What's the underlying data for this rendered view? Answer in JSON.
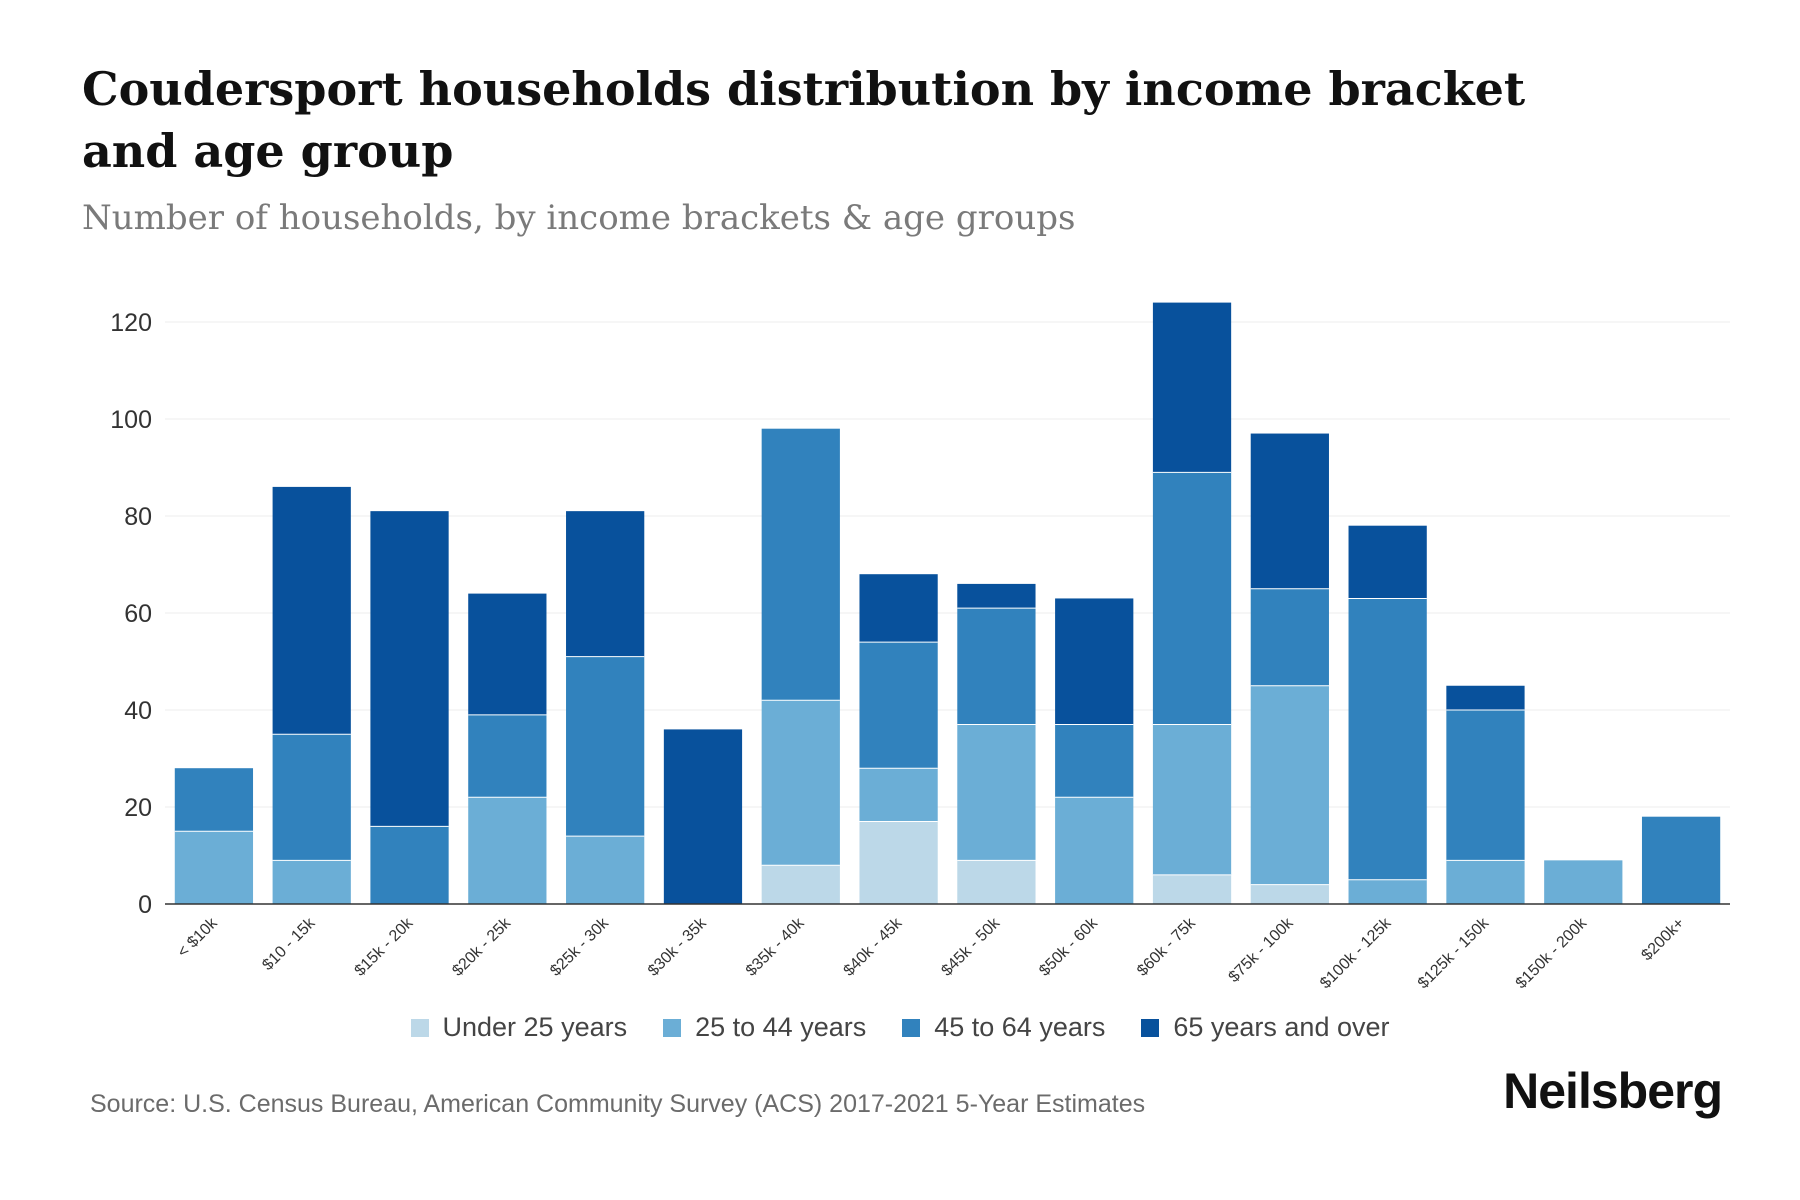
{
  "title": "Coudersport households distribution by income bracket and age group",
  "subtitle": "Number of households, by income brackets & age groups",
  "source": "Source: U.S. Census Bureau, American Community Survey (ACS) 2017-2021 5-Year Estimates",
  "brand": "Neilsberg",
  "chart_data": {
    "type": "bar",
    "stacked": true,
    "title": "Coudersport households distribution by income bracket and age group",
    "subtitle": "Number of households, by income brackets & age groups",
    "xlabel": "",
    "ylabel": "",
    "ylim": [
      0,
      120
    ],
    "yticks": [
      0,
      20,
      40,
      60,
      80,
      100,
      120
    ],
    "grid": true,
    "legend_position": "bottom",
    "categories": [
      "< $10k",
      "$10 - 15k",
      "$15k - 20k",
      "$20k - 25k",
      "$25k - 30k",
      "$30k - 35k",
      "$35k - 40k",
      "$40k - 45k",
      "$45k - 50k",
      "$50k - 60k",
      "$60k - 75k",
      "$75k - 100k",
      "$100k - 125k",
      "$125k - 150k",
      "$150k - 200k",
      "$200k+"
    ],
    "series": [
      {
        "name": "Under 25 years",
        "color": "#bcd8e8",
        "values": [
          0,
          0,
          0,
          0,
          0,
          0,
          8,
          17,
          9,
          0,
          6,
          4,
          0,
          0,
          0,
          0
        ]
      },
      {
        "name": "25 to 44 years",
        "color": "#6baed6",
        "values": [
          15,
          9,
          0,
          22,
          14,
          0,
          34,
          11,
          28,
          22,
          31,
          41,
          5,
          9,
          9,
          0
        ]
      },
      {
        "name": "45 to 64 years",
        "color": "#3182bd",
        "values": [
          13,
          26,
          16,
          17,
          37,
          0,
          56,
          26,
          24,
          15,
          52,
          20,
          58,
          31,
          0,
          18
        ]
      },
      {
        "name": "65 years and over",
        "color": "#08519c",
        "values": [
          0,
          51,
          65,
          25,
          30,
          36,
          0,
          14,
          5,
          26,
          35,
          32,
          15,
          5,
          0,
          0
        ]
      }
    ]
  }
}
